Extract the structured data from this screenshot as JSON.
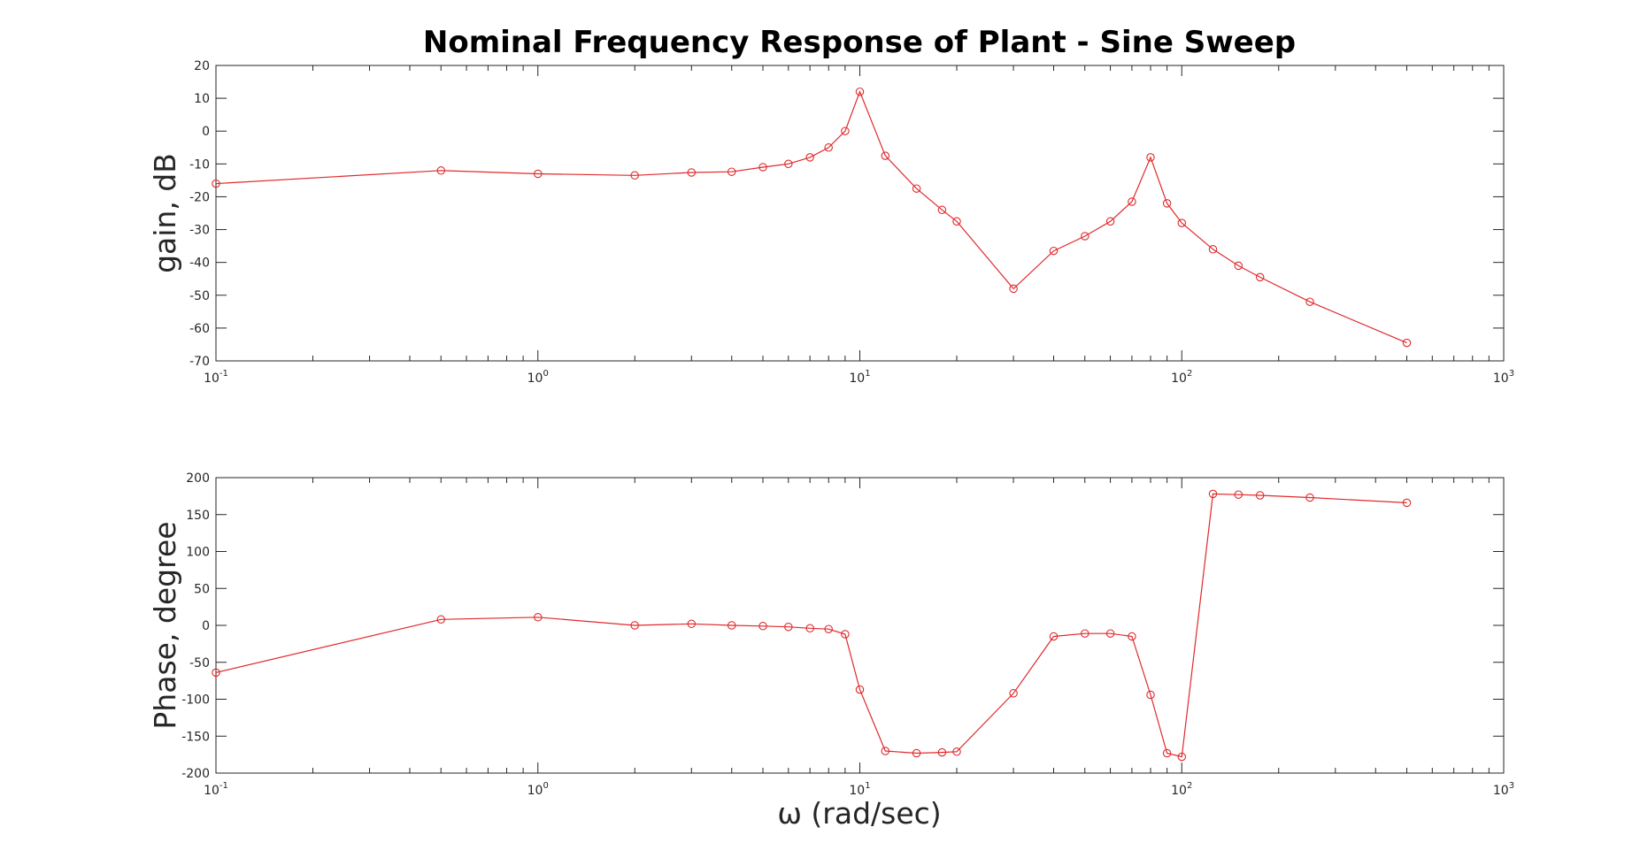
{
  "chart_data": {
    "title": "Nominal Frequency Response of Plant - Sine Sweep",
    "xlabel": "ω (rad/sec)",
    "x_scale": "log",
    "xlim": [
      0.1,
      1000
    ],
    "x_ticks": [
      {
        "base": "10",
        "exp": "-1"
      },
      {
        "base": "10",
        "exp": "0"
      },
      {
        "base": "10",
        "exp": "1"
      },
      {
        "base": "10",
        "exp": "2"
      },
      {
        "base": "10",
        "exp": "3"
      }
    ],
    "color": "#e0292b",
    "grid": false,
    "legend": "none",
    "x": [
      0.1,
      0.5,
      1,
      2,
      3,
      4,
      5,
      6,
      7,
      8,
      9,
      10,
      12,
      15,
      18,
      20,
      30,
      40,
      50,
      60,
      70,
      80,
      90,
      100,
      125,
      150,
      175,
      250,
      500
    ],
    "panels": [
      {
        "type": "line",
        "ylabel": "gain, dB",
        "ylim": [
          -70,
          20
        ],
        "y_ticks": [
          "20",
          "10",
          "0",
          "-10",
          "-20",
          "-30",
          "-40",
          "-50",
          "-60",
          "-70"
        ],
        "y_tick_values": [
          20,
          10,
          0,
          -10,
          -20,
          -30,
          -40,
          -50,
          -60,
          -70
        ],
        "values": [
          -16,
          -12,
          -13,
          -13.5,
          -12.6,
          -12.4,
          -11,
          -10,
          -8,
          -5,
          0,
          12,
          -7.5,
          -17.5,
          -24,
          -27.5,
          -48,
          -36.5,
          -32,
          -27.5,
          -21.5,
          -8,
          -22,
          -28,
          -36,
          -41,
          -44.5,
          -52,
          -64.5
        ]
      },
      {
        "type": "line",
        "ylabel": "Phase, degree",
        "ylim": [
          -200,
          200
        ],
        "y_ticks": [
          "200",
          "150",
          "100",
          "50",
          "0",
          "-50",
          "-100",
          "-150",
          "-200"
        ],
        "y_tick_values": [
          200,
          150,
          100,
          50,
          0,
          -50,
          -100,
          -150,
          -200
        ],
        "values": [
          -64,
          8,
          11,
          0,
          2,
          0,
          -1,
          -2,
          -4,
          -5,
          -12,
          -87,
          -170,
          -173,
          -172,
          -171,
          -92,
          -15,
          -11,
          -11,
          -15,
          -94,
          -173,
          -178,
          178,
          177,
          176,
          173,
          166
        ]
      }
    ]
  }
}
